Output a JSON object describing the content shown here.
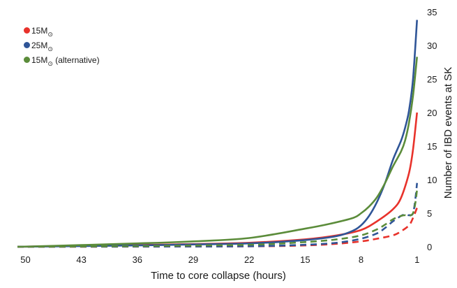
{
  "chart_data": {
    "type": "line",
    "xlabel": "Time to core collapse (hours)",
    "ylabel": "Number of IBD events at SK",
    "xlim": [
      51,
      0.8
    ],
    "x_reversed": true,
    "ylim": [
      0,
      35
    ],
    "x_ticks": [
      50,
      43,
      36,
      29,
      22,
      15,
      8,
      1
    ],
    "y_ticks": [
      0,
      5,
      10,
      15,
      20,
      25,
      30,
      35
    ],
    "y_axis_side": "right",
    "grid": false,
    "legend_position": "top-left",
    "legend": [
      {
        "label_main": "15M",
        "label_sub": "⊙",
        "label_rest": "",
        "color": "#e8322b"
      },
      {
        "label_main": "25M",
        "label_sub": "⊙",
        "label_rest": "",
        "color": "#2f5597"
      },
      {
        "label_main": "15M",
        "label_sub": "⊙",
        "label_rest": " (alternative)",
        "color": "#5b8c3a"
      }
    ],
    "series": [
      {
        "color": "#e8322b",
        "style": "solid",
        "x": [
          51,
          43,
          36,
          29,
          22,
          15,
          11,
          8,
          6,
          4,
          3,
          2,
          1.5,
          1
        ],
        "y": [
          0,
          0.15,
          0.25,
          0.4,
          0.6,
          1.1,
          1.7,
          2.5,
          3.8,
          5.6,
          7.3,
          11,
          14.5,
          20
        ]
      },
      {
        "color": "#2f5597",
        "style": "solid",
        "x": [
          51,
          43,
          36,
          29,
          22,
          15,
          11,
          9,
          8,
          7,
          6,
          5,
          4,
          3,
          2.5,
          2,
          1.5,
          1
        ],
        "y": [
          0,
          0.1,
          0.2,
          0.35,
          0.5,
          1.0,
          1.6,
          2.4,
          3.2,
          4.6,
          6.7,
          9.5,
          13.0,
          15.8,
          17.7,
          20.3,
          25.0,
          33.8
        ]
      },
      {
        "color": "#5b8c3a",
        "style": "solid",
        "x": [
          51,
          43,
          36,
          29,
          22,
          15,
          12,
          9,
          8,
          7,
          6,
          5,
          4,
          3,
          2.5,
          2,
          1.5,
          1
        ],
        "y": [
          0,
          0.25,
          0.5,
          0.8,
          1.3,
          2.7,
          3.4,
          4.3,
          5.0,
          6.0,
          7.4,
          9.5,
          12.0,
          14.2,
          15.8,
          18.5,
          22.5,
          28.3
        ]
      },
      {
        "color": "#e8322b",
        "style": "dashed",
        "x": [
          51,
          36,
          22,
          15,
          11,
          8,
          6,
          4,
          3,
          2,
          1.5,
          1
        ],
        "y": [
          0,
          0.02,
          0.06,
          0.2,
          0.45,
          0.8,
          1.2,
          1.7,
          2.3,
          3.2,
          4.3,
          5.8
        ]
      },
      {
        "color": "#2f5597",
        "style": "dashed",
        "x": [
          51,
          36,
          22,
          15,
          11,
          8,
          6,
          5,
          4,
          3,
          2.5,
          2,
          1.5,
          1.2,
          1
        ],
        "y": [
          0,
          0.03,
          0.08,
          0.3,
          0.6,
          1.2,
          2.0,
          2.8,
          3.8,
          4.6,
          4.8,
          4.7,
          5.0,
          7.2,
          9.5
        ]
      },
      {
        "color": "#5b8c3a",
        "style": "dashed",
        "x": [
          51,
          36,
          22,
          15,
          11,
          8,
          6,
          5,
          4,
          3,
          2.5,
          2,
          1.5,
          1.2,
          1
        ],
        "y": [
          0,
          0.1,
          0.3,
          0.7,
          1.1,
          1.7,
          2.6,
          3.3,
          4.1,
          4.6,
          4.7,
          4.6,
          5.0,
          6.6,
          8.5
        ]
      }
    ]
  }
}
